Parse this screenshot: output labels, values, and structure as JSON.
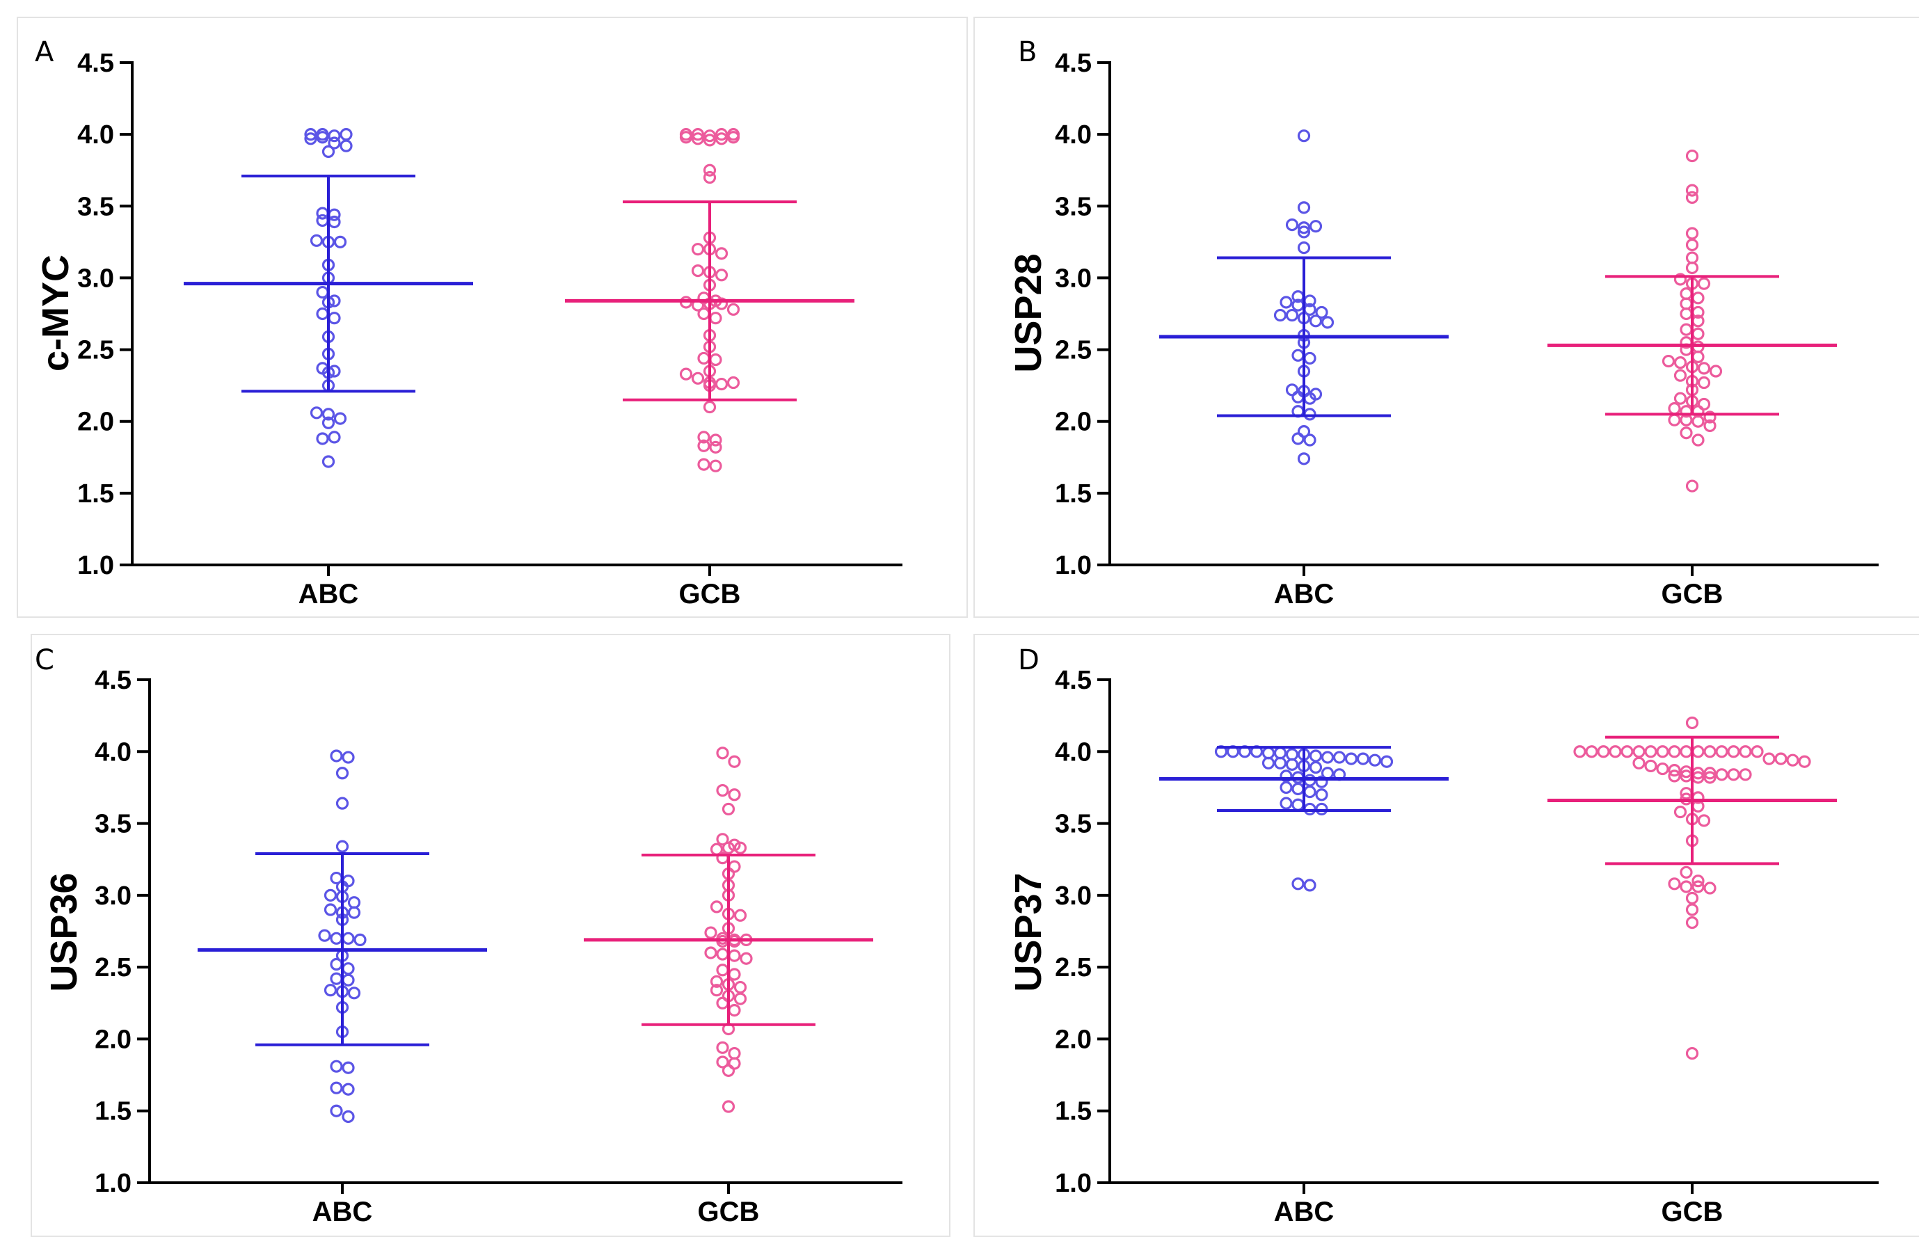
{
  "colors": {
    "ABC": "#2a1fd6",
    "GCB": "#e8207a",
    "ABC_points": "#5b55e6",
    "GCB_points": "#ec5b9c"
  },
  "chart_data": [
    {
      "type": "scatter",
      "panel": "A",
      "ylabel": "c-MYC",
      "categories": [
        "ABC",
        "GCB"
      ],
      "ylim": [
        1.0,
        4.5
      ],
      "yticks": [
        "1.0",
        "1.5",
        "2.0",
        "2.5",
        "3.0",
        "3.5",
        "4.0",
        "4.5"
      ],
      "series": [
        {
          "name": "ABC",
          "mean": 2.96,
          "sd_low": 2.21,
          "sd_high": 3.71,
          "values": [
            4.0,
            4.0,
            3.99,
            3.97,
            3.98,
            4.0,
            3.94,
            3.92,
            3.88,
            3.45,
            3.44,
            3.4,
            3.39,
            3.26,
            3.25,
            3.25,
            3.09,
            3.0,
            2.9,
            2.84,
            2.83,
            2.75,
            2.72,
            2.59,
            2.47,
            2.37,
            2.34,
            2.35,
            2.25,
            2.06,
            2.05,
            1.99,
            2.02,
            1.88,
            1.89,
            1.72
          ]
        },
        {
          "name": "GCB",
          "mean": 2.84,
          "sd_low": 2.15,
          "sd_high": 3.53,
          "values": [
            4.0,
            4.0,
            3.99,
            3.98,
            3.97,
            3.96,
            3.97,
            3.98,
            4.0,
            4.0,
            3.75,
            3.7,
            3.28,
            3.2,
            3.2,
            3.17,
            3.05,
            3.04,
            3.02,
            2.95,
            2.86,
            2.84,
            2.83,
            2.81,
            2.82,
            2.82,
            2.78,
            2.75,
            2.72,
            2.6,
            2.52,
            2.44,
            2.43,
            2.35,
            2.33,
            2.3,
            2.27,
            2.26,
            2.25,
            2.27,
            2.1,
            1.89,
            1.87,
            1.83,
            1.82,
            1.7,
            1.69
          ]
        }
      ]
    },
    {
      "type": "scatter",
      "panel": "B",
      "ylabel": "USP28",
      "categories": [
        "ABC",
        "GCB"
      ],
      "ylim": [
        1.0,
        4.5
      ],
      "yticks": [
        "1.0",
        "1.5",
        "2.0",
        "2.5",
        "3.0",
        "3.5",
        "4.0",
        "4.5"
      ],
      "series": [
        {
          "name": "ABC",
          "mean": 2.59,
          "sd_low": 2.04,
          "sd_high": 3.14,
          "values": [
            3.99,
            3.49,
            3.37,
            3.35,
            3.32,
            3.36,
            3.21,
            2.87,
            2.84,
            2.83,
            2.81,
            2.78,
            2.76,
            2.74,
            2.74,
            2.72,
            2.7,
            2.69,
            2.6,
            2.55,
            2.46,
            2.44,
            2.35,
            2.22,
            2.21,
            2.19,
            2.17,
            2.16,
            2.07,
            2.05,
            1.93,
            1.88,
            1.87,
            1.74
          ]
        },
        {
          "name": "GCB",
          "mean": 2.53,
          "sd_low": 2.05,
          "sd_high": 3.01,
          "values": [
            3.85,
            3.61,
            3.56,
            3.31,
            3.23,
            3.14,
            3.07,
            2.99,
            2.96,
            2.96,
            2.89,
            2.86,
            2.82,
            2.76,
            2.75,
            2.7,
            2.64,
            2.61,
            2.55,
            2.52,
            2.5,
            2.45,
            2.42,
            2.41,
            2.38,
            2.37,
            2.35,
            2.32,
            2.28,
            2.27,
            2.22,
            2.16,
            2.14,
            2.12,
            2.09,
            2.07,
            2.07,
            2.03,
            2.01,
            2.01,
            2.0,
            1.97,
            1.92,
            1.87,
            1.55
          ]
        }
      ]
    },
    {
      "type": "scatter",
      "panel": "C",
      "ylabel": "USP36",
      "categories": [
        "ABC",
        "GCB"
      ],
      "ylim": [
        1.0,
        4.5
      ],
      "yticks": [
        "1.0",
        "1.5",
        "2.0",
        "2.5",
        "3.0",
        "3.5",
        "4.0",
        "4.5"
      ],
      "series": [
        {
          "name": "ABC",
          "mean": 2.62,
          "sd_low": 1.96,
          "sd_high": 3.29,
          "values": [
            3.97,
            3.96,
            3.85,
            3.64,
            3.34,
            3.12,
            3.1,
            3.06,
            3.0,
            2.99,
            2.95,
            2.9,
            2.88,
            2.88,
            2.83,
            2.72,
            2.7,
            2.7,
            2.69,
            2.58,
            2.52,
            2.49,
            2.42,
            2.41,
            2.34,
            2.33,
            2.32,
            2.22,
            2.05,
            1.81,
            1.8,
            1.66,
            1.65,
            1.5,
            1.46
          ]
        },
        {
          "name": "GCB",
          "mean": 2.69,
          "sd_low": 2.1,
          "sd_high": 3.28,
          "values": [
            3.99,
            3.93,
            3.73,
            3.7,
            3.6,
            3.39,
            3.35,
            3.32,
            3.33,
            3.33,
            3.26,
            3.2,
            3.15,
            3.07,
            3.0,
            2.92,
            2.87,
            2.86,
            2.77,
            2.74,
            2.7,
            2.69,
            2.68,
            2.69,
            2.68,
            2.6,
            2.59,
            2.58,
            2.56,
            2.48,
            2.45,
            2.4,
            2.38,
            2.36,
            2.34,
            2.3,
            2.28,
            2.25,
            2.2,
            2.07,
            1.94,
            1.9,
            1.84,
            1.83,
            1.78,
            1.53
          ]
        }
      ]
    },
    {
      "type": "scatter",
      "panel": "D",
      "ylabel": "USP37",
      "categories": [
        "ABC",
        "GCB"
      ],
      "ylim": [
        1.0,
        4.5
      ],
      "yticks": [
        "1.0",
        "1.5",
        "2.0",
        "2.5",
        "3.0",
        "3.5",
        "4.0",
        "4.5"
      ],
      "series": [
        {
          "name": "ABC",
          "mean": 3.81,
          "sd_low": 3.59,
          "sd_high": 4.03,
          "values": [
            4.0,
            4.0,
            4.0,
            4.0,
            3.99,
            3.99,
            3.98,
            3.98,
            3.97,
            3.96,
            3.96,
            3.95,
            3.95,
            3.94,
            3.93,
            3.92,
            3.92,
            3.91,
            3.9,
            3.89,
            3.85,
            3.84,
            3.83,
            3.82,
            3.8,
            3.79,
            3.75,
            3.74,
            3.72,
            3.7,
            3.64,
            3.63,
            3.6,
            3.6,
            3.08,
            3.07
          ]
        },
        {
          "name": "GCB",
          "mean": 3.66,
          "sd_low": 3.22,
          "sd_high": 4.1,
          "values": [
            4.2,
            4.0,
            4.0,
            4.0,
            4.0,
            4.0,
            4.0,
            4.0,
            4.0,
            4.0,
            4.0,
            4.0,
            4.0,
            4.0,
            4.0,
            4.0,
            4.0,
            3.95,
            3.95,
            3.94,
            3.93,
            3.92,
            3.9,
            3.88,
            3.87,
            3.86,
            3.85,
            3.85,
            3.84,
            3.84,
            3.84,
            3.83,
            3.83,
            3.82,
            3.82,
            3.71,
            3.68,
            3.67,
            3.62,
            3.58,
            3.53,
            3.52,
            3.38,
            3.16,
            3.1,
            3.08,
            3.06,
            3.06,
            3.05,
            2.98,
            2.9,
            2.81,
            1.9
          ]
        }
      ]
    }
  ]
}
